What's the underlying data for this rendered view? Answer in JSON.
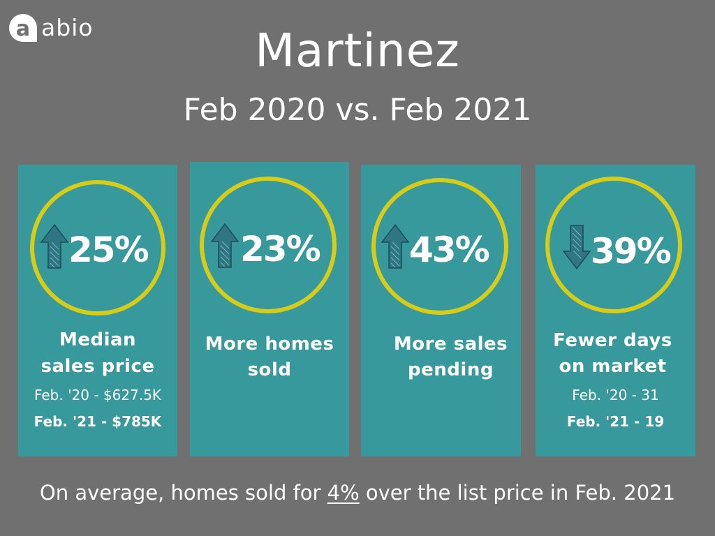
{
  "brand": {
    "name": "abio",
    "logo_letter": "a",
    "icon": "speech-bubble-logo"
  },
  "title": "Martinez",
  "subtitle": "Feb 2020 vs. Feb 2021",
  "colors": {
    "background": "#707070",
    "card": "#38999c",
    "ring": "#d7cc18",
    "arrow": "#2f7682",
    "text": "#ffffff"
  },
  "stats": [
    {
      "value": "25%",
      "direction": "up",
      "icon": "arrow-up-icon",
      "label_line1": "Median",
      "label_line2": "sales price",
      "detail_prev": "Feb. '20 - $627.5K",
      "detail_curr": "Feb. '21 - $785K"
    },
    {
      "value": "23%",
      "direction": "up",
      "icon": "arrow-up-icon",
      "label_line1": "More homes",
      "label_line2": "sold"
    },
    {
      "value": "43%",
      "direction": "up",
      "icon": "arrow-up-icon",
      "label_line1": "More sales",
      "label_line2": "pending"
    },
    {
      "value": "39%",
      "direction": "down",
      "icon": "arrow-down-icon",
      "label_line1": "Fewer days",
      "label_line2": "on market",
      "detail_prev": "Feb. '20 - 31",
      "detail_curr": "Feb. '21 - 19"
    }
  ],
  "footer": {
    "before": "On average, homes sold for ",
    "highlight": "4%",
    "after": " over the list price in Feb. 2021"
  }
}
